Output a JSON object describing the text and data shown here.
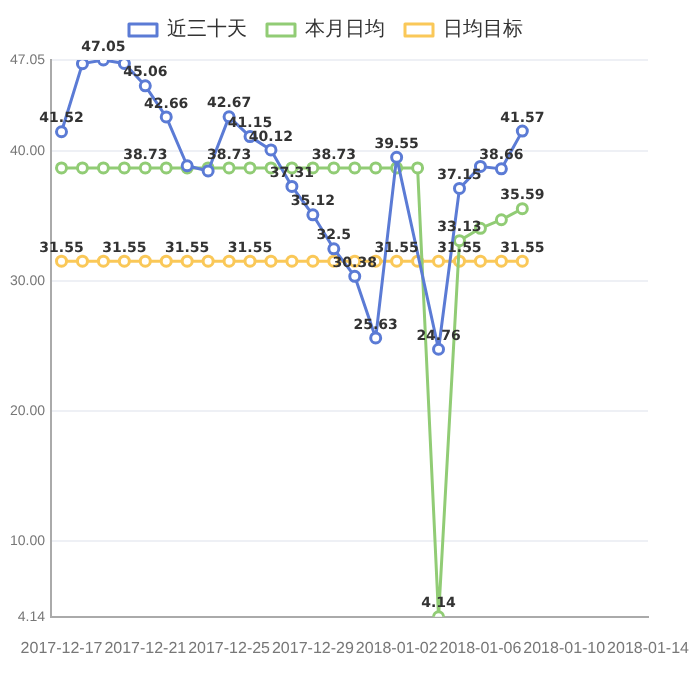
{
  "chart_data": {
    "type": "line",
    "legend": "top",
    "grid": "y",
    "marker": "circle",
    "xlim": [
      "2017-12-16T12:00",
      "2018-01-14"
    ],
    "xticks": [
      "2017-12-17",
      "2017-12-21",
      "2017-12-25",
      "2017-12-29",
      "2018-01-02",
      "2018-01-06",
      "2018-01-10",
      "2018-01-14"
    ],
    "ylim": [
      4.14,
      47.05
    ],
    "yticks": [
      4.14,
      {
        "value": 10,
        "label": "10.00"
      },
      {
        "value": 20,
        "label": "20.00"
      },
      {
        "value": 30,
        "label": "30.00"
      },
      {
        "value": 40,
        "label": "40.00"
      },
      47.05
    ],
    "series": [
      {
        "name": "近三十天",
        "color": "#5b7bd5",
        "x": [
          "2017-12-17",
          "2017-12-18",
          "2017-12-19",
          "2017-12-20",
          "2017-12-21",
          "2017-12-22",
          "2017-12-23",
          "2017-12-24",
          "2017-12-25",
          "2017-12-26",
          "2017-12-27",
          "2017-12-28",
          "2017-12-29",
          "2017-12-30",
          "2017-12-31",
          "2018-01-01",
          "2018-01-02",
          "2018-01-04",
          "2018-01-05",
          "2018-01-06",
          "2018-01-07",
          "2018-01-08"
        ],
        "values": [
          41.52,
          46.77,
          47.05,
          46.78,
          45.06,
          42.66,
          38.9,
          38.5,
          42.67,
          41.15,
          40.12,
          37.31,
          35.12,
          32.5,
          30.38,
          25.63,
          39.55,
          24.76,
          37.15,
          38.85,
          38.66,
          41.57
        ],
        "value_labels": [
          "41.52",
          null,
          "47.05",
          null,
          "45.06",
          "42.66",
          null,
          null,
          "42.67",
          "41.15",
          "40.12",
          "37.31",
          "35.12",
          "32.5",
          "30.38",
          "25.63",
          "39.55",
          "24.76",
          "37.15",
          null,
          "38.66",
          "41.57"
        ]
      },
      {
        "name": "本月日均",
        "color": "#91cc75",
        "x": [
          "2017-12-17",
          "2017-12-18",
          "2017-12-19",
          "2017-12-20",
          "2017-12-21",
          "2017-12-22",
          "2017-12-23",
          "2017-12-24",
          "2017-12-25",
          "2017-12-26",
          "2017-12-27",
          "2017-12-28",
          "2017-12-29",
          "2017-12-30",
          "2017-12-31",
          "2018-01-01",
          "2018-01-02",
          "2018-01-03",
          "2018-01-04",
          "2018-01-05",
          "2018-01-06",
          "2018-01-07",
          "2018-01-08"
        ],
        "values": [
          38.73,
          38.73,
          38.73,
          38.73,
          38.73,
          38.73,
          38.73,
          38.73,
          38.73,
          38.73,
          38.73,
          38.73,
          38.73,
          38.73,
          38.73,
          38.73,
          38.73,
          38.73,
          4.14,
          33.13,
          34.08,
          34.74,
          35.59
        ],
        "value_labels": [
          null,
          null,
          null,
          null,
          "38.73",
          null,
          null,
          null,
          "38.73",
          null,
          null,
          null,
          null,
          "38.73",
          null,
          null,
          null,
          null,
          "4.14",
          "33.13",
          null,
          null,
          "35.59"
        ]
      },
      {
        "name": "日均目标",
        "color": "#fac858",
        "x": [
          "2017-12-17",
          "2017-12-18",
          "2017-12-19",
          "2017-12-20",
          "2017-12-21",
          "2017-12-22",
          "2017-12-23",
          "2017-12-24",
          "2017-12-25",
          "2017-12-26",
          "2017-12-27",
          "2017-12-28",
          "2017-12-29",
          "2017-12-30",
          "2017-12-31",
          "2018-01-01",
          "2018-01-02",
          "2018-01-03",
          "2018-01-04",
          "2018-01-05",
          "2018-01-06",
          "2018-01-07",
          "2018-01-08"
        ],
        "values": [
          31.55,
          31.55,
          31.55,
          31.55,
          31.55,
          31.55,
          31.55,
          31.55,
          31.55,
          31.55,
          31.55,
          31.55,
          31.55,
          31.55,
          31.55,
          31.55,
          31.55,
          31.55,
          31.55,
          31.55,
          31.55,
          31.55,
          31.55
        ],
        "value_labels": [
          "31.55",
          null,
          null,
          "31.55",
          null,
          null,
          "31.55",
          null,
          null,
          "31.55",
          null,
          null,
          null,
          null,
          null,
          null,
          "31.55",
          null,
          null,
          "31.55",
          null,
          null,
          "31.55"
        ]
      }
    ]
  }
}
